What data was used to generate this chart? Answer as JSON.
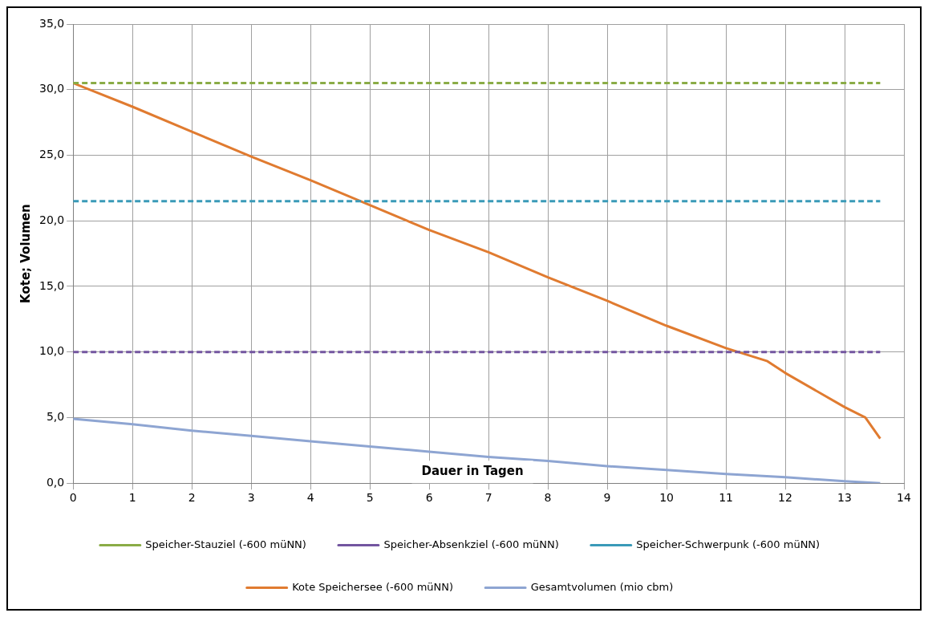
{
  "chart_data": {
    "type": "line",
    "xlabel": "Dauer in Tagen",
    "ylabel": "Kote; Volumen",
    "xlim": [
      0,
      14
    ],
    "xticks": [
      0,
      1,
      2,
      3,
      4,
      5,
      6,
      7,
      8,
      9,
      10,
      11,
      12,
      13,
      14
    ],
    "ylim": [
      0,
      35
    ],
    "yticks": [
      {
        "value": 0,
        "label": "0,0"
      },
      {
        "value": 5,
        "label": "5,0"
      },
      {
        "value": 10,
        "label": "10,0"
      },
      {
        "value": 15,
        "label": "15,0"
      },
      {
        "value": 20,
        "label": "20,0"
      },
      {
        "value": 25,
        "label": "25,0"
      },
      {
        "value": 30,
        "label": "30,0"
      },
      {
        "value": 35,
        "label": "35,0"
      }
    ],
    "grid": true,
    "legend": "bottom",
    "marker": "none",
    "series": [
      {
        "name": "Speicher-Stauziel (-600 müNN)",
        "color": "#8aac46",
        "line_style": "dashed",
        "x": [
          0,
          13.6
        ],
        "values": [
          30.5,
          30.5
        ]
      },
      {
        "name": "Speicher-Absenkziel (-600 müNN)",
        "color": "#7355a0",
        "line_style": "dashed",
        "x": [
          0,
          13.6
        ],
        "values": [
          10,
          10
        ]
      },
      {
        "name": "Speicher-Schwerpunk (-600 müNN)",
        "color": "#3a9ab8",
        "line_style": "dashed",
        "x": [
          0,
          13.6
        ],
        "values": [
          21.5,
          21.5
        ]
      },
      {
        "name": "Kote Speichersee (-600 müNN)",
        "color": "#e07b30",
        "line_style": "solid",
        "x": [
          0,
          1,
          2,
          3,
          4,
          5,
          6,
          7,
          8,
          9,
          10,
          11,
          11.7,
          12,
          13,
          13.35,
          13.6
        ],
        "values": [
          30.5,
          28.7,
          26.8,
          24.9,
          23.1,
          21.2,
          19.3,
          17.6,
          15.7,
          13.9,
          12.0,
          10.3,
          9.3,
          8.4,
          5.8,
          5.0,
          3.4
        ]
      },
      {
        "name": "Gesamtvolumen (mio cbm)",
        "color": "#8ea5d2",
        "line_style": "solid",
        "x": [
          0,
          1,
          2,
          3,
          4,
          5,
          6,
          7,
          8,
          9,
          10,
          11,
          12,
          13,
          13.6
        ],
        "values": [
          4.9,
          4.5,
          4.0,
          3.6,
          3.2,
          2.8,
          2.4,
          2.0,
          1.7,
          1.3,
          1.0,
          0.7,
          0.45,
          0.15,
          0.0
        ]
      }
    ]
  }
}
